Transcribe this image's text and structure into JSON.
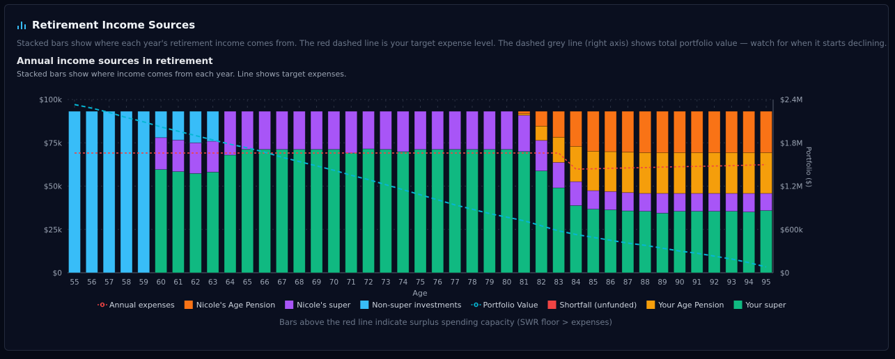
{
  "header": {
    "title": "Retirement Income Sources",
    "icon": "bar-chart-icon",
    "description": "Stacked bars show where each year's retirement income comes from. The red dashed line is your target expense level. The dashed grey line (right axis) shows total portfolio value — watch for when it starts declining."
  },
  "chart_header": {
    "title": "Annual income sources in retirement",
    "subtitle": "Stacked bars show where income comes from each year. Line shows target expenses."
  },
  "footnote": "Bars above the red line indicate surplus spending capacity (SWR floor > expenses)",
  "chart_data": {
    "type": "bar",
    "stacked": true,
    "xlabel": "Age",
    "ylabel": "",
    "y2label": "Portfolio ($)",
    "ylim": [
      0,
      100000
    ],
    "y2lim": [
      0,
      2400000
    ],
    "yticks": [
      "$0",
      "$25k",
      "$50k",
      "$75k",
      "$100k"
    ],
    "y2ticks": [
      "$0",
      "$600k",
      "$1.2M",
      "$1.8M",
      "$2.4M"
    ],
    "legend_position": "bottom",
    "categories": [
      55,
      56,
      57,
      58,
      59,
      60,
      61,
      62,
      63,
      64,
      65,
      66,
      67,
      68,
      69,
      70,
      71,
      72,
      73,
      74,
      75,
      76,
      77,
      78,
      79,
      80,
      81,
      82,
      83,
      84,
      85,
      86,
      87,
      88,
      89,
      90,
      91,
      92,
      93,
      94,
      95
    ],
    "series": [
      {
        "name": "Your super",
        "color": "#10b981",
        "values": [
          0,
          0,
          0,
          0,
          0,
          59.6,
          58.4,
          57.3,
          58.1,
          67.9,
          71.2,
          71.2,
          71.2,
          71.2,
          71.2,
          71.2,
          69.1,
          71.5,
          71.2,
          69.9,
          71.2,
          71.2,
          71.2,
          71.2,
          71.2,
          71.2,
          70.0,
          58.8,
          49.0,
          38.8,
          36.7,
          36.3,
          35.7,
          35.5,
          34.4,
          35.5,
          35.5,
          35.5,
          35.5,
          35.1,
          35.9
        ]
      },
      {
        "name": "Nicole's super",
        "color": "#a855f7",
        "values": [
          0,
          0,
          0,
          0,
          0,
          18.4,
          18.2,
          17.7,
          17.8,
          25.3,
          22.0,
          22.0,
          22.0,
          22.0,
          22.0,
          22.0,
          24.1,
          21.7,
          22.0,
          23.3,
          22.0,
          22.0,
          22.0,
          22.0,
          22.0,
          22.0,
          20.9,
          17.6,
          14.7,
          13.8,
          10.7,
          10.6,
          10.6,
          10.3,
          11.4,
          10.3,
          10.3,
          10.3,
          10.3,
          10.7,
          9.9
        ]
      },
      {
        "name": "Your Age Pension",
        "color": "#f59e0b",
        "values": [
          0,
          0,
          0,
          0,
          0,
          0,
          0,
          0,
          0,
          0,
          0,
          0,
          0,
          0,
          0,
          0,
          0,
          0,
          0,
          0,
          0,
          0,
          0,
          0,
          0,
          0,
          0.9,
          8.2,
          14.5,
          20.3,
          22.7,
          23.0,
          23.3,
          23.5,
          23.5,
          23.5,
          23.5,
          23.5,
          23.5,
          23.5,
          23.5
        ]
      },
      {
        "name": "Nicole's Age Pension",
        "color": "#f97316",
        "values": [
          0,
          0,
          0,
          0,
          0,
          0,
          0,
          0,
          0,
          0,
          0,
          0,
          0,
          0,
          0,
          0,
          0,
          0,
          0,
          0,
          0,
          0,
          0,
          0,
          0,
          0,
          1.4,
          8.6,
          15.0,
          20.3,
          23.1,
          23.3,
          23.6,
          23.9,
          23.9,
          23.9,
          23.9,
          23.9,
          23.9,
          23.9,
          23.9
        ]
      },
      {
        "name": "Non-super investments",
        "color": "#38bdf8",
        "values": [
          93.2,
          93.2,
          93.2,
          93.2,
          93.2,
          15.2,
          16.6,
          18.2,
          17.3,
          0,
          0,
          0,
          0,
          0,
          0,
          0,
          0,
          0,
          0,
          0,
          0,
          0,
          0,
          0,
          0,
          0,
          0,
          0,
          0,
          0,
          0,
          0,
          0,
          0,
          0,
          0,
          0,
          0,
          0,
          0,
          0
        ]
      },
      {
        "name": "Shortfall (unfunded)",
        "color": "#ef4444",
        "values": [
          0,
          0,
          0,
          0,
          0,
          0,
          0,
          0,
          0,
          0,
          0,
          0,
          0,
          0,
          0,
          0,
          0,
          0,
          0,
          0,
          0,
          0,
          0,
          0,
          0,
          0,
          0,
          0,
          0,
          0,
          0,
          0,
          0,
          0,
          0,
          0,
          0,
          0,
          0,
          0,
          0
        ]
      }
    ],
    "value_unit": "thousands of $",
    "lines": [
      {
        "name": "Annual expenses",
        "color": "#ef4444",
        "axis": "left",
        "values": [
          69.1,
          69.1,
          69.1,
          69.1,
          69.1,
          69.1,
          69.1,
          69.1,
          69.1,
          69.1,
          69.1,
          69.1,
          69.1,
          69.1,
          69.1,
          69.1,
          69.1,
          69.1,
          69.1,
          69.1,
          69.1,
          69.1,
          69.1,
          69.1,
          69.1,
          69.1,
          69.1,
          69.1,
          69.1,
          59.8,
          60.0,
          60.3,
          60.5,
          60.7,
          61.0,
          61.2,
          61.4,
          61.6,
          61.8,
          62.1,
          62.4
        ]
      },
      {
        "name": "Portfolio Value",
        "color": "#06b6d4",
        "axis": "right",
        "unit": "millions of $",
        "values": [
          2.33,
          2.28,
          2.22,
          2.15,
          2.09,
          2.02,
          1.96,
          1.9,
          1.84,
          1.78,
          1.73,
          1.67,
          1.6,
          1.54,
          1.48,
          1.42,
          1.35,
          1.29,
          1.22,
          1.15,
          1.08,
          1.01,
          0.94,
          0.88,
          0.82,
          0.77,
          0.72,
          0.65,
          0.58,
          0.53,
          0.49,
          0.45,
          0.41,
          0.38,
          0.34,
          0.3,
          0.27,
          0.23,
          0.19,
          0.14,
          0.08
        ]
      }
    ],
    "legend": [
      "Annual expenses",
      "Nicole's Age Pension",
      "Nicole's super",
      "Non-super investments",
      "Portfolio Value",
      "Shortfall (unfunded)",
      "Your Age Pension",
      "Your super"
    ]
  }
}
